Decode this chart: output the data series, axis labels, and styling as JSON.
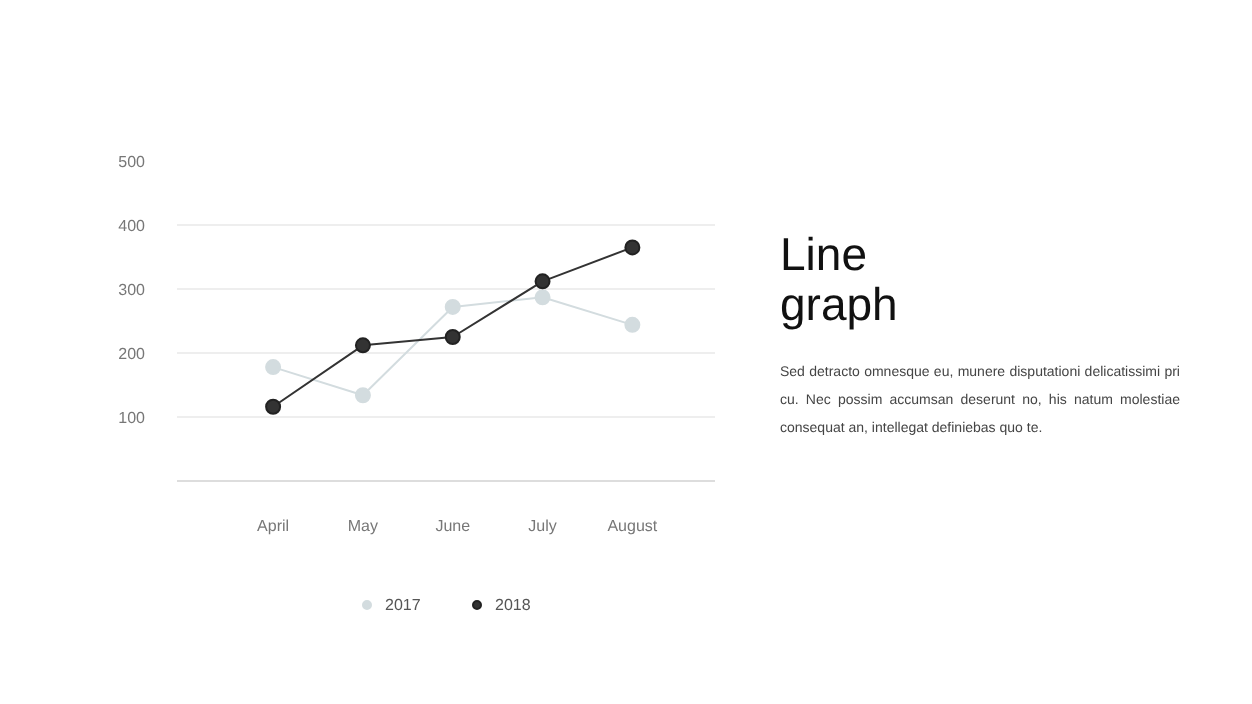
{
  "chart_data": {
    "type": "line",
    "title": "Line graph",
    "subtitle": "Sed detracto omnesque eu, munere disputationi delicatissimi pri cu. Nec possim accumsan deserunt no, his natum molestiae consequat an, intellegat definiebas quo te.",
    "categories": [
      "April",
      "May",
      "June",
      "July",
      "August"
    ],
    "series": [
      {
        "name": "2017",
        "color": "#d3dcdf",
        "values": [
          178,
          134,
          272,
          287,
          244
        ]
      },
      {
        "name": "2018",
        "color": "#333333",
        "values": [
          116,
          212,
          225,
          312,
          365
        ]
      }
    ],
    "ylim": [
      0,
      500
    ],
    "yticks": [
      100,
      200,
      300,
      400,
      500
    ],
    "grid": "y",
    "legend": "bottom",
    "marker": "circle",
    "line_style": "solid"
  }
}
